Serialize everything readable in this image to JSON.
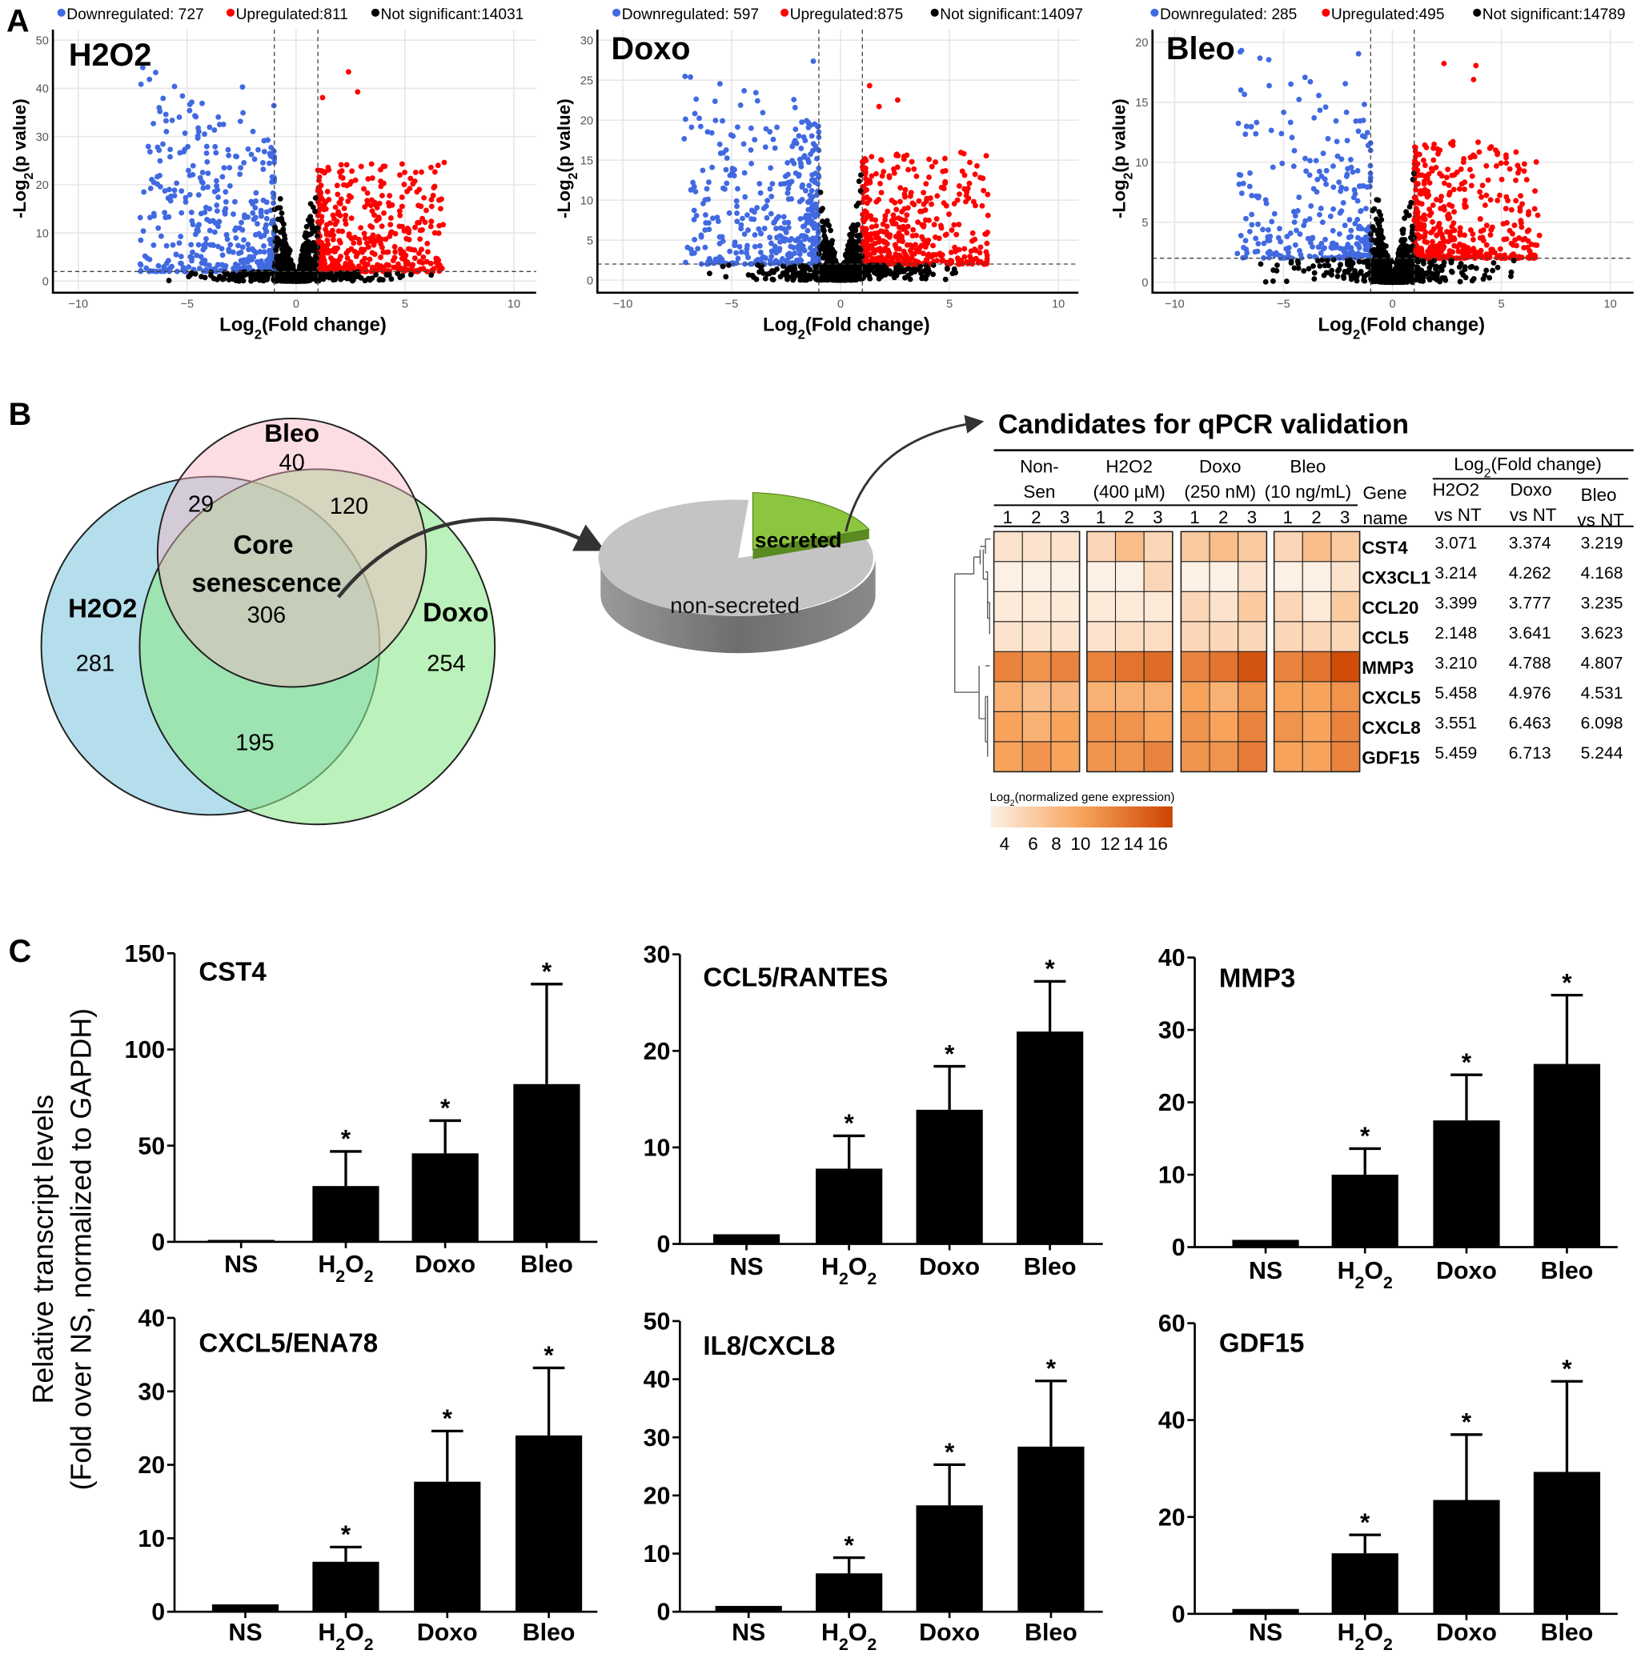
{
  "panel_letters": {
    "a": "A",
    "b": "B",
    "c": "C"
  },
  "colors": {
    "down": "#4169e1",
    "up": "#ff0000",
    "ns": "#000000",
    "venn_h2o2": "#a7d8e8",
    "venn_doxo": "#8ee88c",
    "venn_bleo": "#f8b4c0",
    "secreted": "#8cc63f",
    "pie": "#c4c4c4",
    "heat_low": "#fdf0e4",
    "heat_mid": "#f7a35c",
    "heat_high": "#cc4400"
  },
  "chart_data": [
    {
      "type": "scatter",
      "id": "volcano-h2o2",
      "panel_title": "H2O2",
      "xlabel": "Log2(Fold change)",
      "ylabel": "-Log2(p value)",
      "xlim": [
        -10,
        10
      ],
      "ylim": [
        0,
        50
      ],
      "xticks": [
        -10,
        -5,
        0,
        5,
        10
      ],
      "yticks": [
        0,
        10,
        20,
        30,
        40,
        50
      ],
      "fc_threshold": 1,
      "p_threshold": 2,
      "grid": true,
      "legend_position": "top",
      "legend": [
        {
          "label": "Downregulated: 727",
          "class": "down"
        },
        {
          "label": "Upregulated:811",
          "class": "up"
        },
        {
          "label": "Not significant:14031",
          "class": "ns"
        }
      ],
      "counts": {
        "down": 727,
        "up": 811,
        "ns": 14031
      },
      "max_y": 46
    },
    {
      "type": "scatter",
      "id": "volcano-doxo",
      "panel_title": "Doxo",
      "xlabel": "Log2(Fold change)",
      "ylabel": "-Log2(p value)",
      "xlim": [
        -10,
        10
      ],
      "ylim": [
        0,
        30
      ],
      "xticks": [
        -10,
        -5,
        0,
        5,
        10
      ],
      "yticks": [
        0,
        5,
        10,
        15,
        20,
        25,
        30
      ],
      "fc_threshold": 1,
      "p_threshold": 2,
      "grid": true,
      "legend_position": "top",
      "legend": [
        {
          "label": "Downregulated: 597",
          "class": "down"
        },
        {
          "label": "Upregulated:875",
          "class": "up"
        },
        {
          "label": "Not significant:14097",
          "class": "ns"
        }
      ],
      "counts": {
        "down": 597,
        "up": 875,
        "ns": 14097
      },
      "max_y": 28
    },
    {
      "type": "scatter",
      "id": "volcano-bleo",
      "panel_title": "Bleo",
      "xlabel": "Log2(Fold change)",
      "ylabel": "-Log2(p value)",
      "xlim": [
        -10,
        10
      ],
      "ylim": [
        0,
        20
      ],
      "xticks": [
        -10,
        -5,
        0,
        5,
        10
      ],
      "yticks": [
        0,
        5,
        10,
        15,
        20
      ],
      "fc_threshold": 1,
      "p_threshold": 2,
      "grid": true,
      "legend_position": "top",
      "legend": [
        {
          "label": "Downregulated: 285",
          "class": "down"
        },
        {
          "label": "Upregulated:495",
          "class": "up"
        },
        {
          "label": "Not significant:14789",
          "class": "ns"
        }
      ],
      "counts": {
        "down": 285,
        "up": 495,
        "ns": 14789
      },
      "max_y": 19.5
    },
    {
      "type": "bar",
      "id": "bar-cst4",
      "title": "CST4",
      "categories": [
        "NS",
        "H2O2",
        "Doxo",
        "Bleo"
      ],
      "values": [
        1,
        29,
        46,
        82
      ],
      "error_upper": [
        1,
        47,
        63,
        134
      ],
      "significant": [
        false,
        true,
        true,
        true
      ],
      "ylim": [
        0,
        150
      ],
      "yticks": [
        0,
        50,
        100,
        150
      ]
    },
    {
      "type": "bar",
      "id": "bar-ccl5",
      "title": "CCL5/RANTES",
      "categories": [
        "NS",
        "H2O2",
        "Doxo",
        "Bleo"
      ],
      "values": [
        1,
        7.8,
        13.9,
        22
      ],
      "error_upper": [
        1,
        11.2,
        18.4,
        27.2
      ],
      "significant": [
        false,
        true,
        true,
        true
      ],
      "ylim": [
        0,
        30
      ],
      "yticks": [
        0,
        10,
        20,
        30
      ]
    },
    {
      "type": "bar",
      "id": "bar-mmp3",
      "title": "MMP3",
      "categories": [
        "NS",
        "H2O2",
        "Doxo",
        "Bleo"
      ],
      "values": [
        1,
        10,
        17.5,
        25.3
      ],
      "error_upper": [
        1,
        13.6,
        23.8,
        34.8
      ],
      "significant": [
        false,
        true,
        true,
        true
      ],
      "ylim": [
        0,
        40
      ],
      "yticks": [
        0,
        10,
        20,
        30,
        40
      ]
    },
    {
      "type": "bar",
      "id": "bar-cxcl5",
      "title": "CXCL5/ENA78",
      "categories": [
        "NS",
        "H2O2",
        "Doxo",
        "Bleo"
      ],
      "values": [
        1,
        6.8,
        17.7,
        24
      ],
      "error_upper": [
        1,
        8.8,
        24.6,
        33.2
      ],
      "significant": [
        false,
        true,
        true,
        true
      ],
      "ylim": [
        0,
        40
      ],
      "yticks": [
        0,
        10,
        20,
        30,
        40
      ]
    },
    {
      "type": "bar",
      "id": "bar-il8",
      "title": "IL8/CXCL8",
      "categories": [
        "NS",
        "H2O2",
        "Doxo",
        "Bleo"
      ],
      "values": [
        1,
        6.6,
        18.3,
        28.4
      ],
      "error_upper": [
        1,
        9.3,
        25.3,
        39.7
      ],
      "significant": [
        false,
        true,
        true,
        true
      ],
      "ylim": [
        0,
        50
      ],
      "yticks": [
        0,
        10,
        20,
        30,
        40,
        50
      ]
    },
    {
      "type": "bar",
      "id": "bar-gdf15",
      "title": "GDF15",
      "categories": [
        "NS",
        "H2O2",
        "Doxo",
        "Bleo"
      ],
      "values": [
        1,
        12.5,
        23.5,
        29.3
      ],
      "error_upper": [
        1,
        16.3,
        37,
        48
      ],
      "significant": [
        false,
        true,
        true,
        true
      ],
      "ylim": [
        0,
        60
      ],
      "yticks": [
        0,
        20,
        40,
        60
      ]
    }
  ],
  "bar_ylabel_line1": "Relative transcript levels",
  "bar_ylabel_line2": "(Fold over NS, normalized to GAPDH)",
  "asterisk": "*",
  "venn": {
    "sets": [
      "H2O2",
      "Doxo",
      "Bleo"
    ],
    "labels": {
      "bleo": "Bleo",
      "h2o2": "H2O2",
      "doxo": "Doxo",
      "core1": "Core",
      "core2": "senescence"
    },
    "counts": {
      "bleo_only": "40",
      "h2o2_bleo": "29",
      "doxo_bleo": "120",
      "core": "306",
      "h2o2_only": "281",
      "doxo_only": "254",
      "h2o2_doxo": "195"
    }
  },
  "pie": {
    "slices": [
      {
        "label": "non-secreted"
      },
      {
        "label": "secreted"
      }
    ]
  },
  "heatmap": {
    "title": "Candidates for qPCR validation",
    "groups": [
      {
        "line1": "Non-",
        "line2": "Sen"
      },
      {
        "line1": "H2O2",
        "line2": "(400 µM)"
      },
      {
        "line1": "Doxo",
        "line2": "(250 nM)"
      },
      {
        "line1": "Bleo",
        "line2": "(10 ng/mL)"
      }
    ],
    "replicates": [
      "1",
      "2",
      "3"
    ],
    "gene_header1": "Gene",
    "gene_header2": "name",
    "fc_header": "Log2(Fold change)",
    "fc_cols": [
      {
        "line1": "H2O2",
        "line2": "vs NT"
      },
      {
        "line1": "Doxo",
        "line2": "vs NT"
      },
      {
        "line1": "Bleo",
        "line2": "vs NT"
      }
    ],
    "rows": [
      {
        "gene": "CST4",
        "expr": [
          5,
          5,
          5,
          6,
          8,
          6,
          7,
          8,
          7,
          6,
          8,
          7
        ],
        "fc": [
          "3.071",
          "3.374",
          "3.219"
        ]
      },
      {
        "gene": "CX3CL1",
        "expr": [
          4,
          4,
          4,
          4,
          4,
          6,
          4,
          4,
          5,
          4,
          4,
          5
        ],
        "fc": [
          "3.214",
          "4.262",
          "4.168"
        ]
      },
      {
        "gene": "CCL20",
        "expr": [
          4.5,
          4.5,
          4.5,
          4.5,
          4.5,
          4.5,
          6,
          5,
          7,
          6,
          4.5,
          7
        ],
        "fc": [
          "3.399",
          "3.777",
          "3.235"
        ]
      },
      {
        "gene": "CCL5",
        "expr": [
          5,
          5,
          5,
          5,
          5.5,
          5.5,
          6,
          6,
          6,
          6,
          6,
          6
        ],
        "fc": [
          "2.148",
          "3.641",
          "3.623"
        ]
      },
      {
        "gene": "MMP3",
        "expr": [
          12,
          11,
          12,
          12,
          13,
          13.5,
          12,
          13,
          15,
          12,
          13,
          15.5
        ],
        "fc": [
          "3.210",
          "4.788",
          "4.807"
        ]
      },
      {
        "gene": "CXCL5",
        "expr": [
          9,
          8,
          8.5,
          9,
          9,
          9,
          10,
          9,
          11,
          10,
          10,
          11
        ],
        "fc": [
          "5.458",
          "4.976",
          "4.531"
        ]
      },
      {
        "gene": "CXCL8",
        "expr": [
          10,
          9,
          10,
          11,
          11,
          10,
          11,
          10,
          12,
          11,
          10,
          12
        ],
        "fc": [
          "3.551",
          "6.463",
          "6.098"
        ]
      },
      {
        "gene": "GDF15",
        "expr": [
          10,
          11,
          10,
          11,
          11,
          12,
          11,
          11,
          12.5,
          10,
          10,
          12
        ],
        "fc": [
          "5.459",
          "6.713",
          "5.244"
        ]
      }
    ],
    "colorbar_label": "Log2(normalized gene expression)",
    "colorbar_range": [
      4,
      16
    ],
    "colorbar_ticks": [
      "4",
      "6",
      "8",
      "10",
      "12",
      "14",
      "16"
    ]
  }
}
